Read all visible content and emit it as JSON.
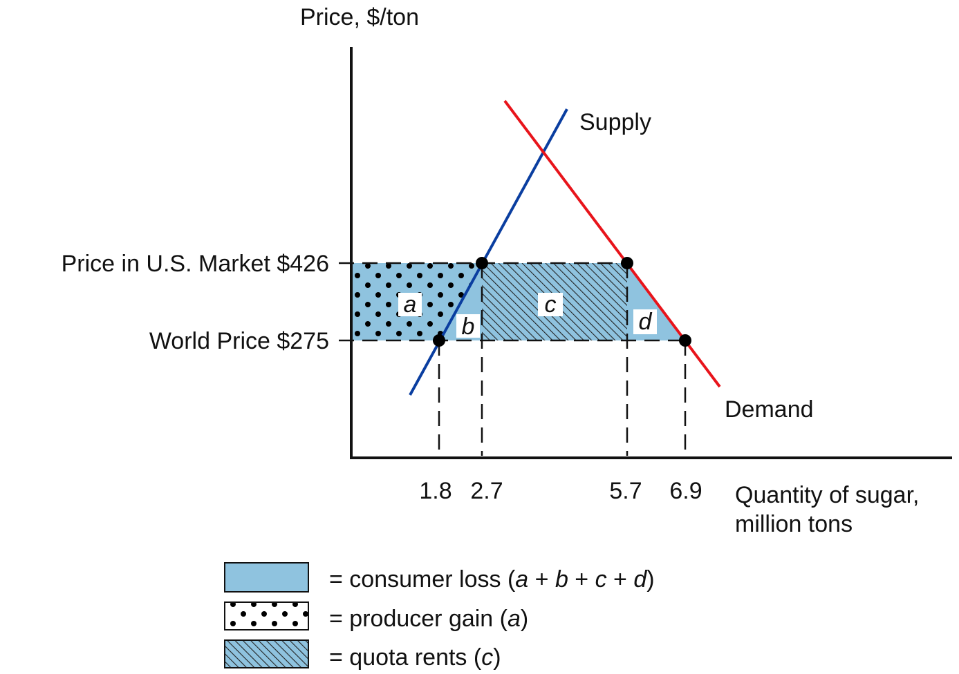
{
  "axes": {
    "y_label": "Price, $/ton",
    "x_label_line1": "Quantity of sugar,",
    "x_label_line2": "million tons"
  },
  "prices": {
    "us_market": "Price in U.S. Market $426",
    "world": "World Price $275"
  },
  "quantities": [
    "1.8",
    "2.7",
    "5.7",
    "6.9"
  ],
  "curves": {
    "supply": "Supply",
    "demand": "Demand"
  },
  "areas": [
    "a",
    "b",
    "c",
    "d"
  ],
  "legend": [
    {
      "parts": [
        "= consumer loss (",
        "a",
        " + ",
        "b",
        " + ",
        "c",
        " + ",
        "d",
        ")"
      ]
    },
    {
      "parts": [
        "= producer gain (",
        "a",
        ")"
      ]
    },
    {
      "parts": [
        "= quota rents (",
        "c",
        ")"
      ]
    }
  ]
}
